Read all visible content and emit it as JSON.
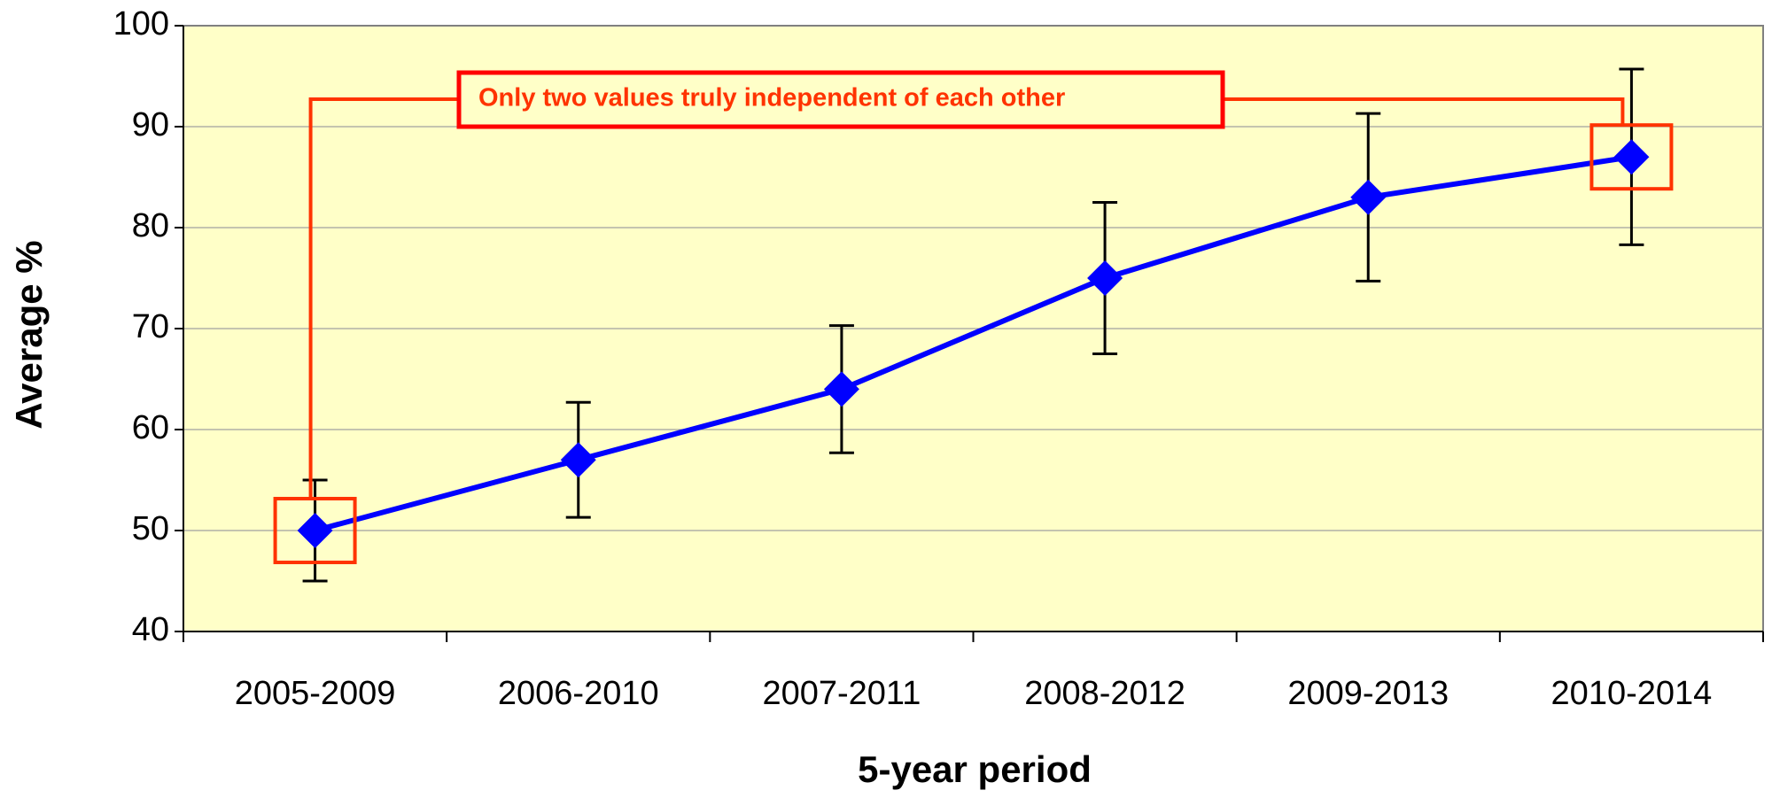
{
  "chart_data": {
    "type": "line",
    "xlabel": "5-year period",
    "ylabel": "Average %",
    "categories": [
      "2005-2009",
      "2006-2010",
      "2007-2011",
      "2008-2012",
      "2009-2013",
      "2010-2014"
    ],
    "series": [
      {
        "name": "Average %",
        "color": "#0000ff",
        "values": [
          50,
          57,
          64,
          75,
          83,
          87
        ],
        "errors": [
          5,
          5.7,
          6.3,
          7.5,
          8.3,
          8.7
        ]
      }
    ],
    "ylim": [
      40,
      100
    ],
    "yticks": [
      40,
      50,
      60,
      70,
      80,
      90,
      100
    ],
    "grid": true,
    "plot_background": "#ffffc8",
    "annotation": {
      "text": "Only two values truly independent of each other",
      "color": "#ff3300"
    }
  }
}
